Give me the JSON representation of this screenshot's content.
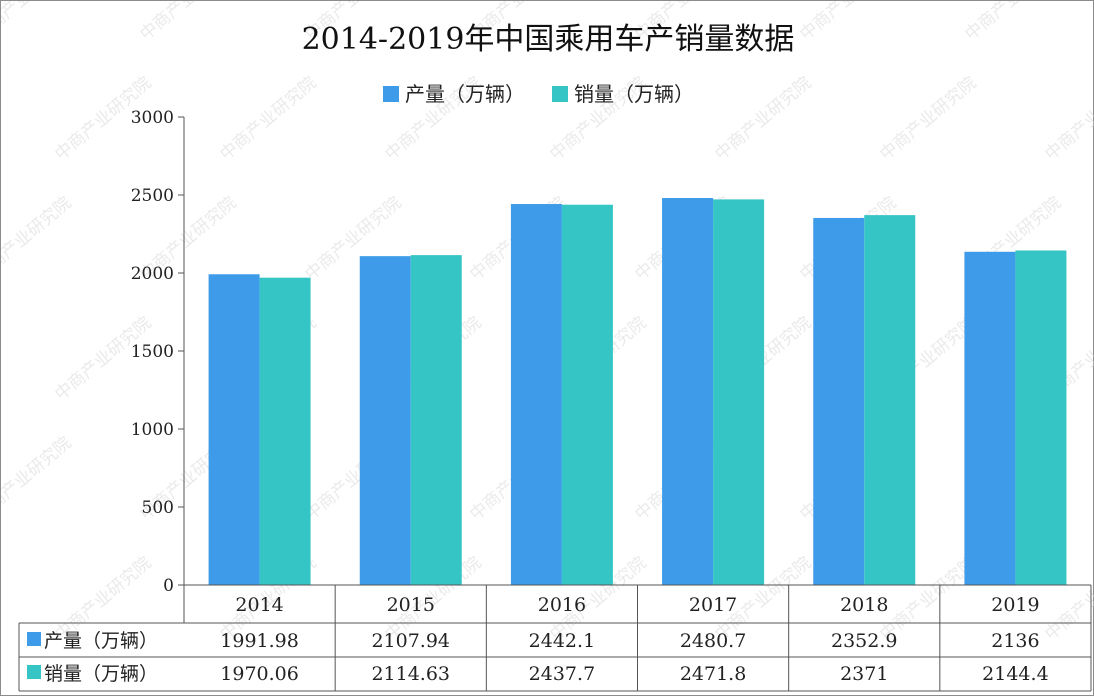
{
  "chart_data": {
    "type": "bar",
    "title": "2014-2019年中国乘用车产销量数据",
    "categories": [
      "2014",
      "2015",
      "2016",
      "2017",
      "2018",
      "2019"
    ],
    "series": [
      {
        "name": "产量（万辆）",
        "color": "#3d9be9",
        "values": [
          1991.98,
          2107.94,
          2442.1,
          2480.7,
          2352.9,
          2136
        ]
      },
      {
        "name": "销量（万辆）",
        "color": "#36c5c5",
        "values": [
          1970.06,
          2114.63,
          2437.7,
          2471.8,
          2371,
          2144.4
        ]
      }
    ],
    "table_values": [
      [
        "1991.98",
        "2107.94",
        "2442.1",
        "2480.7",
        "2352.9",
        "2136"
      ],
      [
        "1970.06",
        "2114.63",
        "2437.7",
        "2471.8",
        "2371",
        "2144.4"
      ]
    ],
    "ylim": [
      0,
      3000
    ],
    "yticks": [
      "0",
      "500",
      "1000",
      "1500",
      "2000",
      "2500",
      "3000"
    ],
    "legend_position": "top-center",
    "grid": false,
    "data_table": true
  },
  "watermark": "中商产业研究院"
}
